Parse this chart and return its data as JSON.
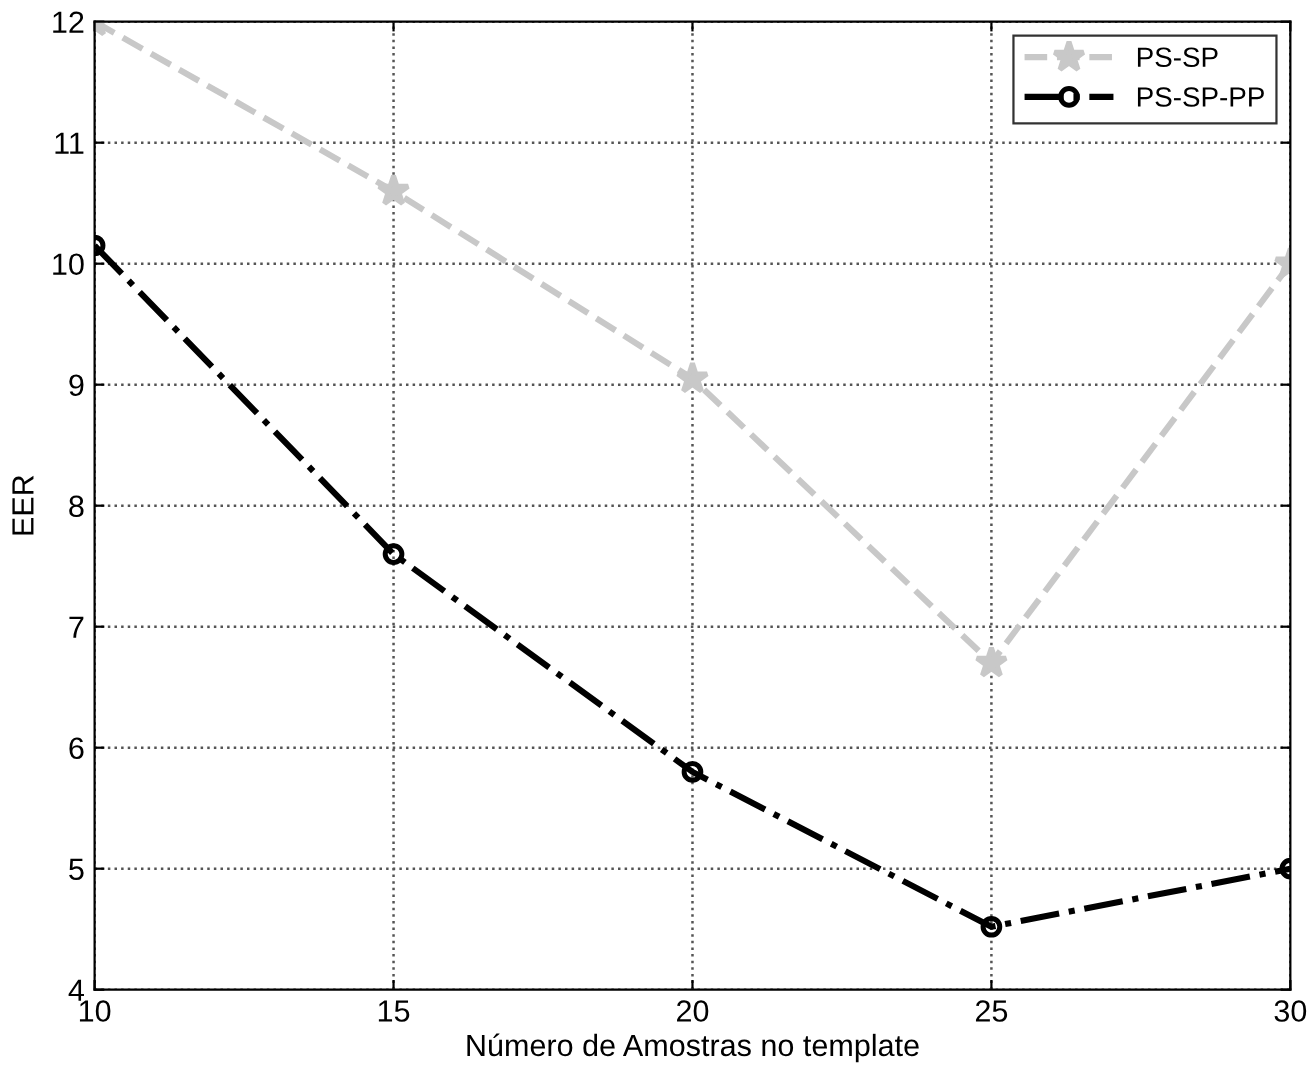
{
  "chart_data": {
    "type": "line",
    "xlabel": "Número de Amostras no template",
    "ylabel": "EER",
    "x": [
      10,
      15,
      20,
      25,
      30
    ],
    "series": [
      {
        "name": "PS-SP",
        "color": "#c8c8c8",
        "marker": "star",
        "line_style": "dashed",
        "values": [
          12.0,
          10.6,
          9.05,
          6.7,
          10.0
        ]
      },
      {
        "name": "PS-SP-PP",
        "color": "#000000",
        "marker": "circle",
        "line_style": "dashdot",
        "values": [
          10.15,
          7.6,
          5.8,
          4.52,
          5.0
        ]
      }
    ],
    "xlim": [
      10,
      30
    ],
    "xticks": [
      10,
      15,
      20,
      25,
      30
    ],
    "ylim": [
      4,
      12
    ],
    "yticks": [
      4,
      5,
      6,
      7,
      8,
      9,
      10,
      11,
      12
    ],
    "grid": true,
    "legend": "top right"
  }
}
